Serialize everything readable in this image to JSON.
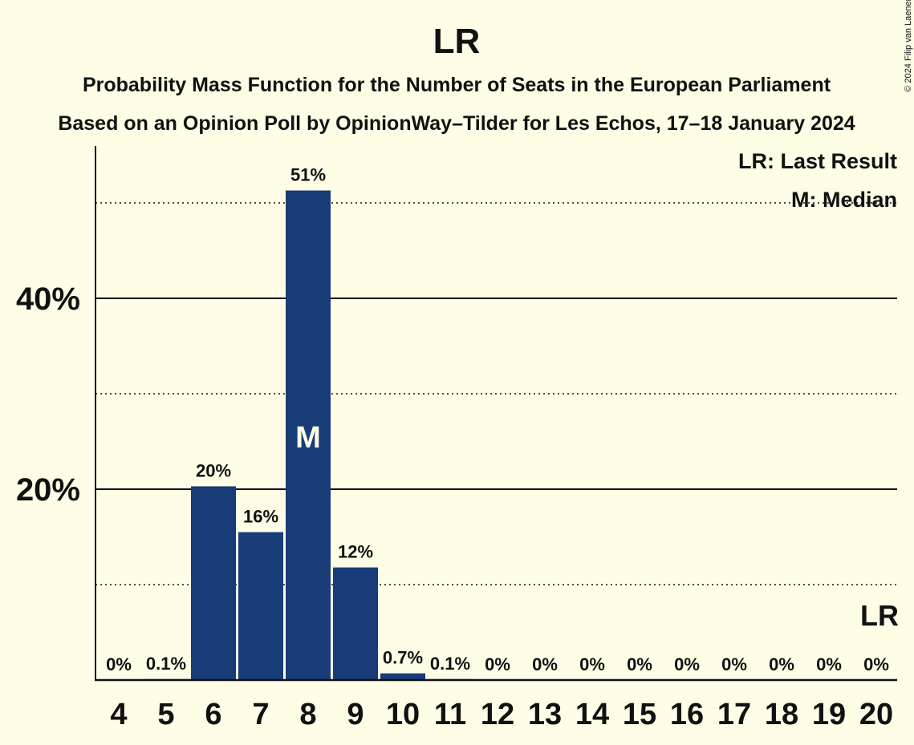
{
  "title": "LR",
  "subtitle1": "Probability Mass Function for the Number of Seats in the European Parliament",
  "subtitle2": "Based on an Opinion Poll by OpinionWay–Tilder for Les Echos, 17–18 January 2024",
  "copyright": "© 2024 Filip van Laenen",
  "legend": {
    "last_result": "LR: Last Result",
    "median": "M: Median"
  },
  "colors": {
    "background": "#FFFDE6",
    "bar": "#183C78",
    "text": "#111111"
  },
  "chart_data": {
    "type": "bar",
    "categories": [
      "4",
      "5",
      "6",
      "7",
      "8",
      "9",
      "10",
      "11",
      "12",
      "13",
      "14",
      "15",
      "16",
      "17",
      "18",
      "19",
      "20"
    ],
    "values": [
      0,
      0.1,
      20.3,
      15.5,
      51.3,
      11.8,
      0.7,
      0.1,
      0,
      0,
      0,
      0,
      0,
      0,
      0,
      0,
      0
    ],
    "labels": [
      "0%",
      "0.1%",
      "20%",
      "16%",
      "51%",
      "12%",
      "0.7%",
      "0.1%",
      "0%",
      "0%",
      "0%",
      "0%",
      "0%",
      "0%",
      "0%",
      "0%",
      "0%"
    ],
    "ylim": [
      0,
      56
    ],
    "y_ticks": [
      {
        "value": 20,
        "label": "20%"
      },
      {
        "value": 40,
        "label": "40%"
      }
    ],
    "y_dotted_gridlines": [
      10,
      30,
      50
    ],
    "median_category": "8",
    "median_marker": "M",
    "last_result_category": "20",
    "last_result_marker": "LR",
    "legend_position": "top-right",
    "xlabel": "",
    "ylabel": ""
  }
}
